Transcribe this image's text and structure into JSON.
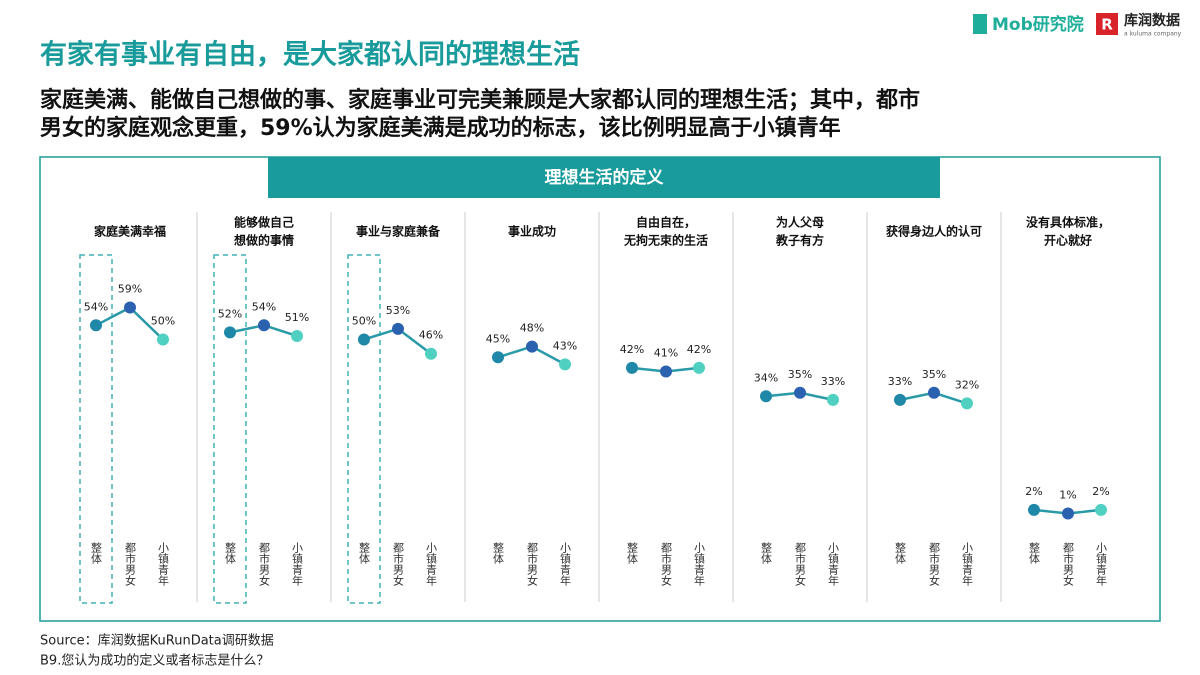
{
  "header": {
    "title": "有家有事业有自由，是大家都认同的理想生活",
    "subtitle": [
      "家庭美满、能做自己想做的事、家庭事业可完美兼顾是大家都认同的理想生活；其中，都市",
      "男女的家庭观念更重，59%认为家庭美满是成功的标志，该比例明显高于小镇青年"
    ],
    "logo_mob": "Mob研究院",
    "logo_kurun": "库润数据",
    "logo_kurun_sub": "a kuluma company",
    "section": "理想生活的定义"
  },
  "footer": {
    "source": "Source：库润数据KuRunData调研数据",
    "note": "B9.您认为成功的定义或者标志是什么？"
  },
  "chart_data": [
    {
      "type": "line",
      "title": [
        "家庭美满幸福"
      ],
      "categories": [
        "整体",
        "都市男女",
        "小镇青年"
      ],
      "values": [
        54,
        59,
        50
      ],
      "value_labels": [
        "54%",
        "59%",
        "50%"
      ],
      "highlight": true,
      "line_color": "#2a9aa8",
      "colors": [
        "#1f87a8",
        "#2a62b0",
        "#4fd0c0"
      ]
    },
    {
      "type": "line",
      "title": [
        "能够做自己",
        "想做的事情"
      ],
      "categories": [
        "整体",
        "都市男女",
        "小镇青年"
      ],
      "values": [
        52,
        54,
        51
      ],
      "value_labels": [
        "52%",
        "54%",
        "51%"
      ],
      "highlight": true,
      "line_color": "#2a9aa8",
      "colors": [
        "#1f87a8",
        "#2a62b0",
        "#4fd0c0"
      ]
    },
    {
      "type": "line",
      "title": [
        "事业与家庭兼备"
      ],
      "categories": [
        "整体",
        "都市男女",
        "小镇青年"
      ],
      "values": [
        50,
        53,
        46
      ],
      "value_labels": [
        "50%",
        "53%",
        "46%"
      ],
      "highlight": true,
      "line_color": "#2a9aa8",
      "colors": [
        "#1f87a8",
        "#2a62b0",
        "#4fd0c0"
      ]
    },
    {
      "type": "line",
      "title": [
        "事业成功"
      ],
      "categories": [
        "整体",
        "都市男女",
        "小镇青年"
      ],
      "values": [
        45,
        48,
        43
      ],
      "value_labels": [
        "45%",
        "48%",
        "43%"
      ],
      "highlight": false,
      "line_color": "#2a9aa8",
      "colors": [
        "#1f87a8",
        "#2a62b0",
        "#4fd0c0"
      ]
    },
    {
      "type": "line",
      "title": [
        "自由自在，",
        "无拘无束的生活"
      ],
      "categories": [
        "整体",
        "都市男女",
        "小镇青年"
      ],
      "values": [
        42,
        41,
        42
      ],
      "value_labels": [
        "42%",
        "41%",
        "42%"
      ],
      "highlight": false,
      "line_color": "#2a9aa8",
      "colors": [
        "#1f87a8",
        "#2a62b0",
        "#4fd0c0"
      ]
    },
    {
      "type": "line",
      "title": [
        "为人父母",
        "教子有方"
      ],
      "categories": [
        "整体",
        "都市男女",
        "小镇青年"
      ],
      "values": [
        34,
        35,
        33
      ],
      "value_labels": [
        "34%",
        "35%",
        "33%"
      ],
      "highlight": false,
      "line_color": "#2a9aa8",
      "colors": [
        "#1f87a8",
        "#2a62b0",
        "#4fd0c0"
      ]
    },
    {
      "type": "line",
      "title": [
        "获得身边人的认可"
      ],
      "categories": [
        "整体",
        "都市男女",
        "小镇青年"
      ],
      "values": [
        33,
        35,
        32
      ],
      "value_labels": [
        "33%",
        "35%",
        "32%"
      ],
      "highlight": false,
      "line_color": "#2a9aa8",
      "colors": [
        "#1f87a8",
        "#2a62b0",
        "#4fd0c0"
      ]
    },
    {
      "type": "line",
      "title": [
        "没有具体标准，",
        "开心就好"
      ],
      "categories": [
        "整体",
        "都市男女",
        "小镇青年"
      ],
      "values": [
        2,
        1,
        2
      ],
      "value_labels": [
        "2%",
        "1%",
        "2%"
      ],
      "highlight": false,
      "line_color": "#2a9aa8",
      "colors": [
        "#1f87a8",
        "#2a62b0",
        "#4fd0c0"
      ]
    }
  ]
}
